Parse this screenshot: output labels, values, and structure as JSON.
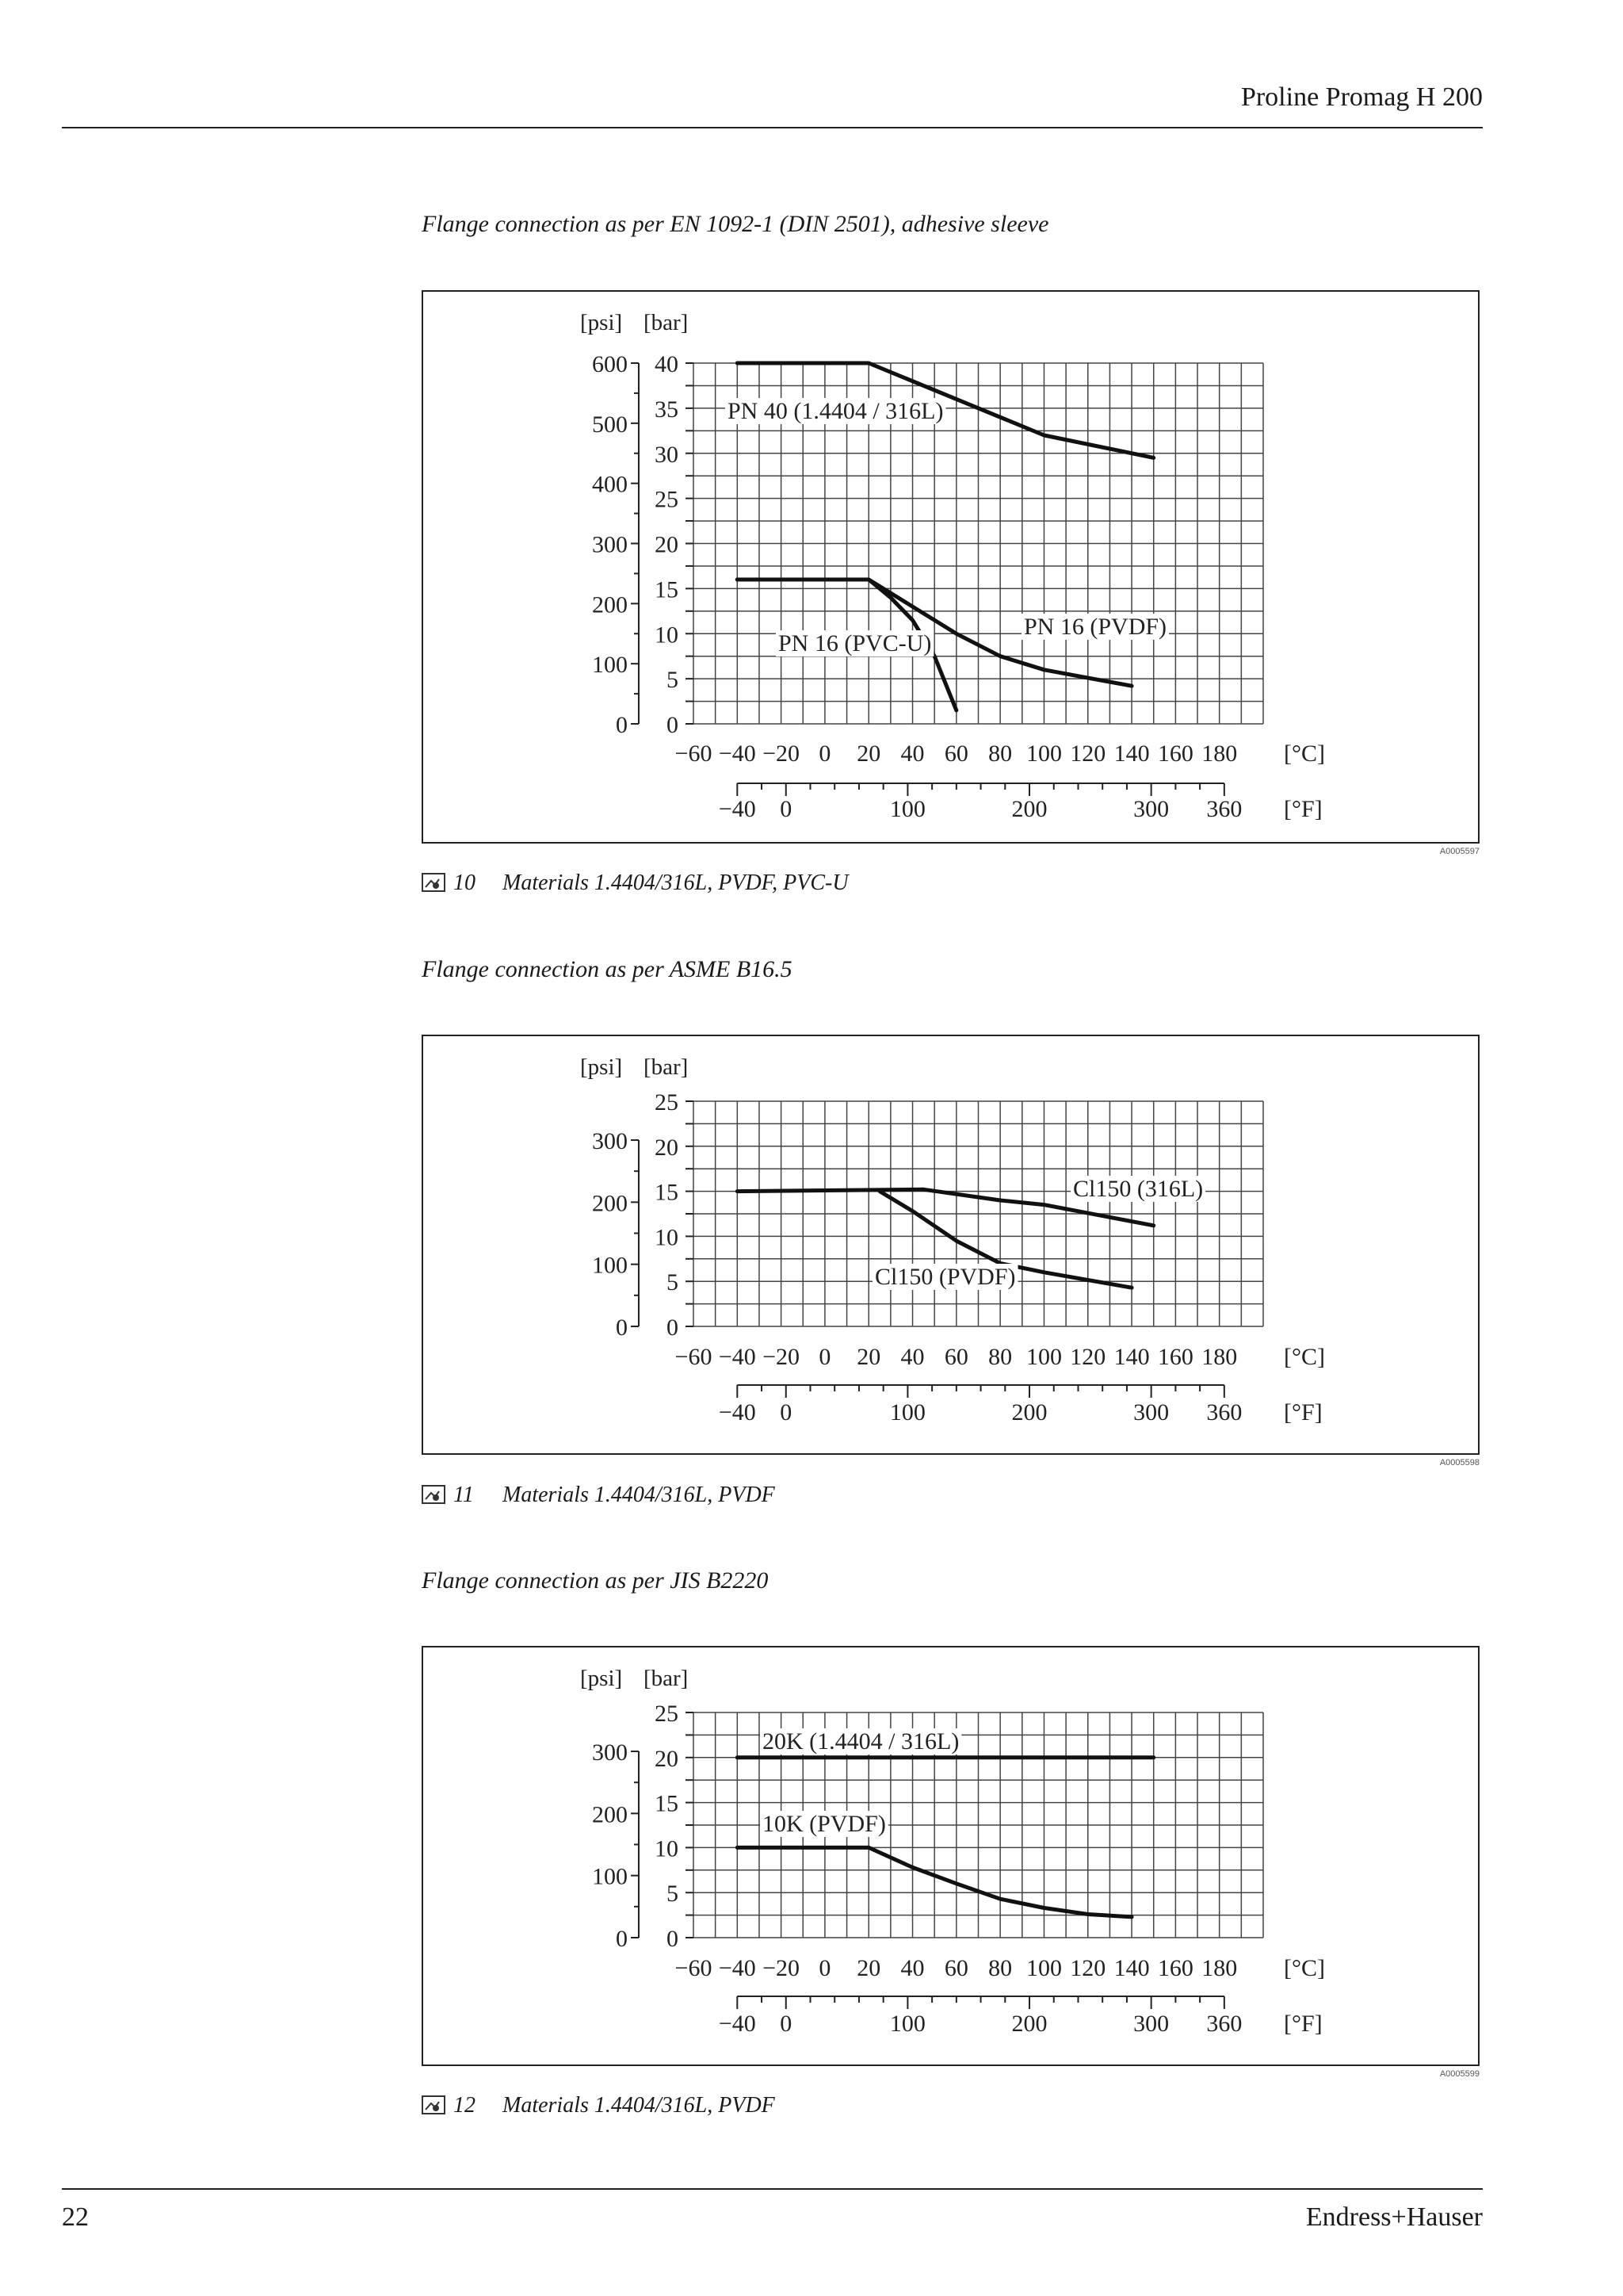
{
  "header": {
    "title": "Proline Promag H 200"
  },
  "footer": {
    "page_number": "22",
    "brand": "Endress+Hauser"
  },
  "icons": {
    "figure": "figure-icon"
  },
  "sections": [
    {
      "title": "Flange connection as per EN 1092-1 (DIN 2501), adhesive sleeve",
      "figure_code": "A0005597",
      "caption_number": "10",
      "caption_text": "Materials 1.4404/316L, PVDF, PVC-U"
    },
    {
      "title": "Flange connection as per ASME B16.5",
      "figure_code": "A0005598",
      "caption_number": "11",
      "caption_text": "Materials 1.4404/316L, PVDF"
    },
    {
      "title": "Flange connection as per JIS B2220",
      "figure_code": "A0005599",
      "caption_number": "12",
      "caption_text": "Materials 1.4404/316L, PVDF"
    }
  ],
  "chart_data": [
    {
      "type": "line",
      "title": "Flange connection as per EN 1092-1 (DIN 2501), adhesive sleeve",
      "xlabel": "[°C]",
      "x2label": "[°F]",
      "ylabel": "[bar]",
      "y2label": "[psi]",
      "xlim": [
        -60,
        200
      ],
      "ylim": [
        0,
        40
      ],
      "grid": true,
      "x_ticks": [
        -60,
        -40,
        -20,
        0,
        20,
        40,
        60,
        80,
        100,
        120,
        140,
        160,
        180
      ],
      "x_ticks_f": [
        -40,
        0,
        100,
        200,
        300,
        360
      ],
      "y_ticks": [
        0,
        5,
        10,
        15,
        20,
        25,
        30,
        35,
        40
      ],
      "y_ticks_psi": [
        0,
        100,
        200,
        300,
        400,
        500,
        600
      ],
      "series": [
        {
          "name": "PN 40 (1.4404 / 316L)",
          "x": [
            -40,
            20,
            100,
            150
          ],
          "y": [
            40,
            40,
            32,
            29.5
          ]
        },
        {
          "name": "PN 16 (PVDF)",
          "x": [
            -40,
            20,
            40,
            60,
            80,
            100,
            140
          ],
          "y": [
            16,
            16,
            13,
            10,
            7.5,
            6,
            4.2
          ]
        },
        {
          "name": "PN 16 (PVC-U)",
          "x": [
            -40,
            20,
            30,
            40,
            50,
            60
          ],
          "y": [
            16,
            16,
            14,
            11.5,
            7.5,
            1.5
          ]
        }
      ]
    },
    {
      "type": "line",
      "title": "Flange connection as per ASME B16.5",
      "xlabel": "[°C]",
      "x2label": "[°F]",
      "ylabel": "[bar]",
      "y2label": "[psi]",
      "xlim": [
        -60,
        200
      ],
      "ylim": [
        0,
        25
      ],
      "grid": true,
      "x_ticks": [
        -60,
        -40,
        -20,
        0,
        20,
        40,
        60,
        80,
        100,
        120,
        140,
        160,
        180
      ],
      "x_ticks_f": [
        -40,
        0,
        100,
        200,
        300,
        360
      ],
      "y_ticks": [
        0,
        5,
        10,
        15,
        20,
        25
      ],
      "y_ticks_psi": [
        0,
        100,
        200,
        300
      ],
      "series": [
        {
          "name": "Cl150 (316L)",
          "x": [
            -40,
            45,
            80,
            100,
            150
          ],
          "y": [
            15,
            15.2,
            14,
            13.5,
            11.2
          ]
        },
        {
          "name": "Cl150 (PVDF)",
          "x": [
            25,
            40,
            60,
            80,
            100,
            140
          ],
          "y": [
            15,
            12.8,
            9.5,
            7,
            6,
            4.3
          ]
        }
      ]
    },
    {
      "type": "line",
      "title": "Flange connection as per JIS B2220",
      "xlabel": "[°C]",
      "x2label": "[°F]",
      "ylabel": "[bar]",
      "y2label": "[psi]",
      "xlim": [
        -60,
        200
      ],
      "ylim": [
        0,
        25
      ],
      "grid": true,
      "x_ticks": [
        -60,
        -40,
        -20,
        0,
        20,
        40,
        60,
        80,
        100,
        120,
        140,
        160,
        180
      ],
      "x_ticks_f": [
        -40,
        0,
        100,
        200,
        300,
        360
      ],
      "y_ticks": [
        0,
        5,
        10,
        15,
        20,
        25
      ],
      "y_ticks_psi": [
        0,
        100,
        200,
        300
      ],
      "series": [
        {
          "name": "20K (1.4404 / 316L)",
          "x": [
            -40,
            150
          ],
          "y": [
            20,
            20
          ]
        },
        {
          "name": "10K (PVDF)",
          "x": [
            -40,
            20,
            40,
            60,
            80,
            100,
            120,
            140
          ],
          "y": [
            10,
            10,
            7.8,
            6,
            4.3,
            3.3,
            2.6,
            2.3
          ]
        }
      ]
    }
  ]
}
